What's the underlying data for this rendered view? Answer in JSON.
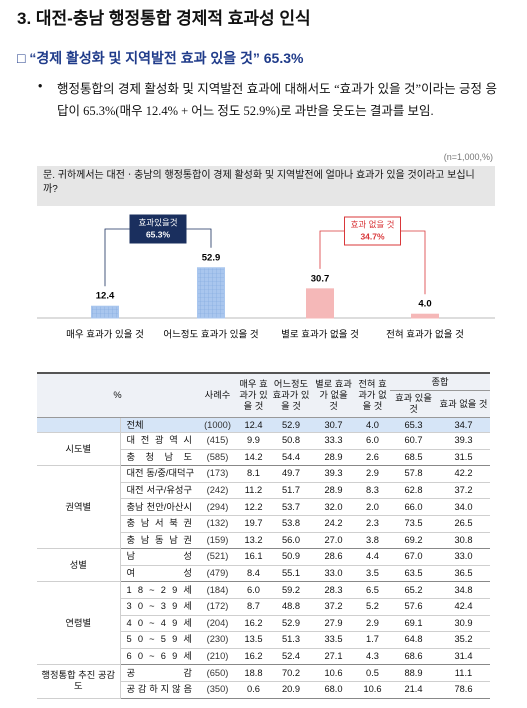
{
  "header": {
    "title": "3. 대전-충남 행정통합 경제적 효과성 인식"
  },
  "subsection": "□ “경제 활성화 및 지역발전 효과 있을 것” 65.3%",
  "bullet": {
    "marker": "•",
    "text": "행정통합의 경제 활성화 및 지역발전 효과에 대해서도 “효과가 있을 것”이라는 긍정 응답이 65.3%(매우 12.4% + 어느 정도 52.9%)로 과반을 웃도는 결과를 보임."
  },
  "note": "(n=1,000,%)",
  "question": "문. 귀하께서는 대전ㆍ충남의 행정통합이 경제 활성화 및 지역발전에 얼마나 효과가 있을 것이라고 보십니까?",
  "chart_data": {
    "type": "bar",
    "categories": [
      "매우 효과가 있을 것",
      "어느정도 효과가 있을 것",
      "별로 효과가 없을 것",
      "전혀 효과가 없을 것"
    ],
    "values": [
      12.4,
      52.9,
      30.7,
      4.0
    ],
    "value_labels": [
      "12.4",
      "52.9",
      "30.7",
      "4.0"
    ],
    "colors": [
      "#a9c6ee",
      "#a9c6ee",
      "#f5b8b8",
      "#f5b8b8"
    ],
    "annotations": [
      {
        "title": "효과있을것",
        "value_label": "65.3%",
        "bars": [
          0,
          1
        ]
      },
      {
        "title": "효과 없을 것",
        "value_label": "34.7%",
        "bars": [
          2,
          3
        ]
      }
    ]
  },
  "table": {
    "header": {
      "pct": "%",
      "n": "사례수",
      "cols": [
        "매우 효과가 있을 것",
        "어느정도 효과가 있을 것",
        "별로 효과가 없을 것",
        "전혀 효과가 없을 것"
      ],
      "total": "종합",
      "total_cols": [
        "효과 있을 것",
        "효과 없을 것"
      ]
    },
    "total_row": {
      "label": "전체",
      "n": "(1000)",
      "values": [
        "12.4",
        "52.9",
        "30.7",
        "4.0",
        "65.3",
        "34.7"
      ]
    },
    "groups": [
      {
        "name": "시도별",
        "rows": [
          {
            "label": "대 전 광 역 시",
            "n": "(415)",
            "values": [
              "9.9",
              "50.8",
              "33.3",
              "6.0",
              "60.7",
              "39.3"
            ]
          },
          {
            "label": "충 청 남 도",
            "n": "(585)",
            "values": [
              "14.2",
              "54.4",
              "28.9",
              "2.6",
              "68.5",
              "31.5"
            ]
          }
        ]
      },
      {
        "name": "권역별",
        "rows": [
          {
            "label": "대전 동/중/대덕구",
            "n": "(173)",
            "values": [
              "8.1",
              "49.7",
              "39.3",
              "2.9",
              "57.8",
              "42.2"
            ]
          },
          {
            "label": "대전 서구/유성구",
            "n": "(242)",
            "values": [
              "11.2",
              "51.7",
              "28.9",
              "8.3",
              "62.8",
              "37.2"
            ]
          },
          {
            "label": "충남 천안/아산시",
            "n": "(294)",
            "values": [
              "12.2",
              "53.7",
              "32.0",
              "2.0",
              "66.0",
              "34.0"
            ]
          },
          {
            "label": "충 남 서 북 권",
            "n": "(132)",
            "values": [
              "19.7",
              "53.8",
              "24.2",
              "2.3",
              "73.5",
              "26.5"
            ]
          },
          {
            "label": "충 남 동 남 권",
            "n": "(159)",
            "values": [
              "13.2",
              "56.0",
              "27.0",
              "3.8",
              "69.2",
              "30.8"
            ]
          }
        ]
      },
      {
        "name": "성별",
        "rows": [
          {
            "label": "남 성",
            "n": "(521)",
            "values": [
              "16.1",
              "50.9",
              "28.6",
              "4.4",
              "67.0",
              "33.0"
            ]
          },
          {
            "label": "여 성",
            "n": "(479)",
            "values": [
              "8.4",
              "55.1",
              "33.0",
              "3.5",
              "63.5",
              "36.5"
            ]
          }
        ]
      },
      {
        "name": "연령별",
        "rows": [
          {
            "label": "1 8 ~ 2 9 세",
            "n": "(184)",
            "values": [
              "6.0",
              "59.2",
              "28.3",
              "6.5",
              "65.2",
              "34.8"
            ]
          },
          {
            "label": "3 0 ~ 3 9 세",
            "n": "(172)",
            "values": [
              "8.7",
              "48.8",
              "37.2",
              "5.2",
              "57.6",
              "42.4"
            ]
          },
          {
            "label": "4 0 ~ 4 9 세",
            "n": "(204)",
            "values": [
              "16.2",
              "52.9",
              "27.9",
              "2.9",
              "69.1",
              "30.9"
            ]
          },
          {
            "label": "5 0 ~ 5 9 세",
            "n": "(230)",
            "values": [
              "13.5",
              "51.3",
              "33.5",
              "1.7",
              "64.8",
              "35.2"
            ]
          },
          {
            "label": "6 0 ~ 6 9 세",
            "n": "(210)",
            "values": [
              "16.2",
              "52.4",
              "27.1",
              "4.3",
              "68.6",
              "31.4"
            ]
          }
        ]
      },
      {
        "name": "행정통합 추진 공감도",
        "rows": [
          {
            "label": "공 감",
            "n": "(650)",
            "values": [
              "18.8",
              "70.2",
              "10.6",
              "0.5",
              "88.9",
              "11.1"
            ]
          },
          {
            "label": "공 감 하 지 않 음",
            "n": "(350)",
            "values": [
              "0.6",
              "20.9",
              "68.0",
              "10.6",
              "21.4",
              "78.6"
            ]
          }
        ]
      }
    ]
  }
}
